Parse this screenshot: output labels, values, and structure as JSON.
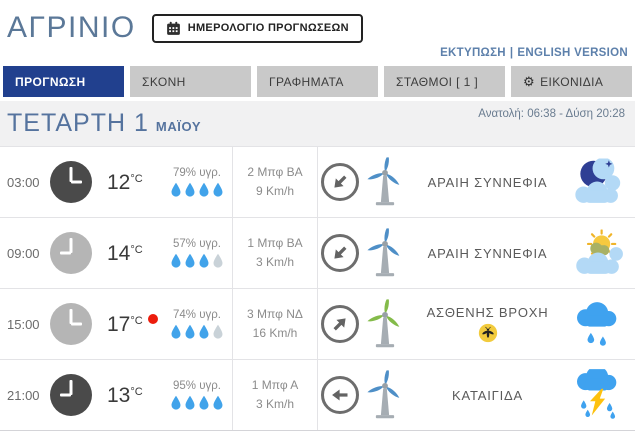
{
  "header": {
    "city_title": "ΑΓΡΙΝΙΟ",
    "calendar_button_label": "ΗΜΕΡΟΛΟΓΙΟ ΠΡΟΓΝΩΣΕΩΝ",
    "print_link": "ΕΚΤΥΠΩΣΗ",
    "link_separator": "|",
    "english_link": "ENGLISH VERSION"
  },
  "tabs": {
    "forecast": {
      "label": "ΠΡΟΓΝΩΣΗ",
      "active": true
    },
    "dust": {
      "label": "ΣΚΟΝΗ"
    },
    "charts": {
      "label": "ΓΡΑΦΗΜΑΤΑ"
    },
    "stations": {
      "label": "ΣΤΑΘΜΟΙ [ 1 ]"
    },
    "icons": {
      "label": "ΕΙΚΟΝΙΔΙΑ",
      "gear_glyph": "⚙"
    }
  },
  "date_bar": {
    "day_title": "ΤΕΤΑΡΤΗ 1",
    "month": "ΜΑΪΟΥ",
    "sun_times": "Ανατολή: 06:38 - Δύση 20:28"
  },
  "forecast_rows": [
    {
      "time": "03:00",
      "period": "night",
      "clock_hour_deg": 90,
      "temp": "12",
      "temp_unit": "°C",
      "max_marker": false,
      "humidity": "79% υγρ.",
      "humidity_drops": 4,
      "wind_beaufort": "2 Μπφ ΒΑ",
      "wind_speed": "9 Km/h",
      "wind_arrow_deg": 135,
      "turbine_color": "#4e8fc7",
      "condition": "ΑΡΑΙΗ ΣΥΝΝΕΦΙΑ",
      "weather_icon": "moon-cloud",
      "mosquito_badge": false
    },
    {
      "time": "09:00",
      "period": "day",
      "clock_hour_deg": 270,
      "temp": "14",
      "temp_unit": "°C",
      "max_marker": false,
      "humidity": "57% υγρ.",
      "humidity_drops": 3,
      "wind_beaufort": "1 Μπφ ΒΑ",
      "wind_speed": "3 Km/h",
      "wind_arrow_deg": 135,
      "turbine_color": "#4e8fc7",
      "condition": "ΑΡΑΙΗ ΣΥΝΝΕΦΙΑ",
      "weather_icon": "sun-cloud",
      "mosquito_badge": false
    },
    {
      "time": "15:00",
      "period": "day",
      "clock_hour_deg": 90,
      "temp": "17",
      "temp_unit": "°C",
      "max_marker": true,
      "humidity": "74% υγρ.",
      "humidity_drops": 3,
      "wind_beaufort": "3 Μπφ ΝΔ",
      "wind_speed": "16 Km/h",
      "wind_arrow_deg": -45,
      "turbine_color": "#84bb4a",
      "condition": "ΑΣΘΕΝΗΣ ΒΡΟΧΗ",
      "weather_icon": "rain-cloud",
      "mosquito_badge": true
    },
    {
      "time": "21:00",
      "period": "night",
      "clock_hour_deg": 270,
      "temp": "13",
      "temp_unit": "°C",
      "max_marker": false,
      "humidity": "95% υγρ.",
      "humidity_drops": 4,
      "wind_beaufort": "1 Μπφ Α",
      "wind_speed": "3 Km/h",
      "wind_arrow_deg": 180,
      "turbine_color": "#4e8fc7",
      "condition": "ΚΑΤΑΙΓΙΔΑ",
      "weather_icon": "storm-cloud",
      "mosquito_badge": false
    }
  ],
  "colors": {
    "active_tab": "#21408e",
    "inactive_tab_bg": "#c9c9c9",
    "title_slate": "#5b7898",
    "link_blue": "#5d80ab",
    "droplet_blue": "#41a3ea",
    "droplet_gray": "#c9d2d8",
    "max_marker_red": "#ec1c0c",
    "turbine_blue": "#4e8fc7",
    "turbine_green": "#84bb4a",
    "rain_blue": "#3fa2ef"
  }
}
